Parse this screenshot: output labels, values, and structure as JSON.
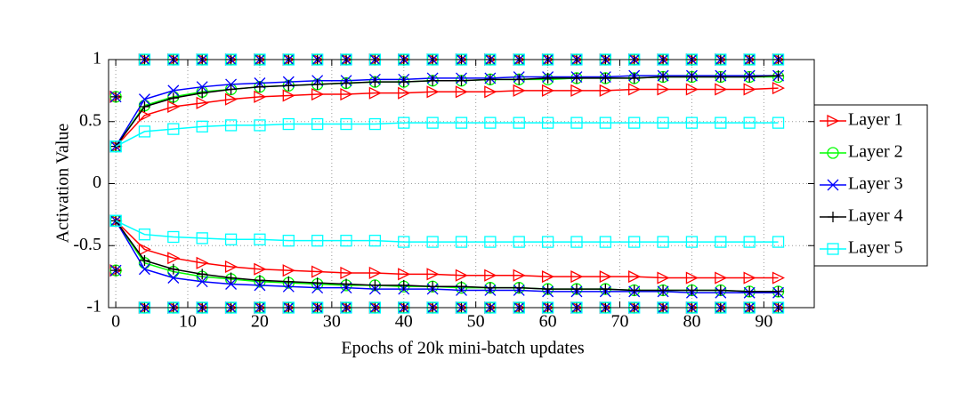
{
  "chart_data": {
    "type": "line",
    "xlabel": "Epochs of 20k mini-batch updates",
    "ylabel": "Activation Value",
    "x": [
      0,
      4,
      8,
      12,
      16,
      20,
      24,
      28,
      32,
      36,
      40,
      44,
      48,
      52,
      56,
      60,
      64,
      68,
      72,
      76,
      80,
      84,
      88,
      92
    ],
    "xlim": [
      -1,
      97
    ],
    "xticks": [
      0,
      10,
      20,
      30,
      40,
      50,
      60,
      70,
      80,
      90
    ],
    "ylim": [
      -1,
      1
    ],
    "yticks": [
      -1,
      -0.5,
      0,
      0.5,
      1
    ],
    "grid": true,
    "legend": "right",
    "series": [
      {
        "name": "Layer 1",
        "color": "#ff0000",
        "marker": "triangle-right",
        "values": [
          0.3,
          0.55,
          0.62,
          0.65,
          0.68,
          0.7,
          0.71,
          0.72,
          0.72,
          0.73,
          0.73,
          0.74,
          0.74,
          0.74,
          0.75,
          0.75,
          0.75,
          0.75,
          0.76,
          0.76,
          0.76,
          0.76,
          0.76,
          0.77
        ],
        "lower_values": [
          -0.3,
          -0.53,
          -0.6,
          -0.64,
          -0.67,
          -0.69,
          -0.7,
          -0.71,
          -0.72,
          -0.72,
          -0.73,
          -0.73,
          -0.74,
          -0.74,
          -0.74,
          -0.75,
          -0.75,
          -0.75,
          -0.75,
          -0.76,
          -0.76,
          -0.76,
          -0.76,
          -0.76
        ],
        "max_values": [
          0.7,
          1,
          1,
          1,
          1,
          1,
          1,
          1,
          1,
          1,
          1,
          1,
          1,
          1,
          1,
          1,
          1,
          1,
          1,
          1,
          1,
          1,
          1,
          1
        ],
        "min_values": [
          -0.7,
          -1,
          -1,
          -1,
          -1,
          -1,
          -1,
          -1,
          -1,
          -1,
          -1,
          -1,
          -1,
          -1,
          -1,
          -1,
          -1,
          -1,
          -1,
          -1,
          -1,
          -1,
          -1,
          -1
        ]
      },
      {
        "name": "Layer 2",
        "color": "#00ff00",
        "marker": "circle",
        "values": [
          0.3,
          0.63,
          0.7,
          0.74,
          0.76,
          0.78,
          0.79,
          0.8,
          0.81,
          0.82,
          0.82,
          0.83,
          0.83,
          0.84,
          0.84,
          0.84,
          0.85,
          0.85,
          0.85,
          0.86,
          0.86,
          0.86,
          0.86,
          0.86
        ],
        "lower_values": [
          -0.3,
          -0.64,
          -0.71,
          -0.75,
          -0.77,
          -0.79,
          -0.8,
          -0.81,
          -0.82,
          -0.82,
          -0.83,
          -0.83,
          -0.84,
          -0.84,
          -0.84,
          -0.85,
          -0.85,
          -0.85,
          -0.86,
          -0.86,
          -0.86,
          -0.86,
          -0.87,
          -0.87
        ],
        "max_values": [
          0.7,
          1,
          1,
          1,
          1,
          1,
          1,
          1,
          1,
          1,
          1,
          1,
          1,
          1,
          1,
          1,
          1,
          1,
          1,
          1,
          1,
          1,
          1,
          1
        ],
        "min_values": [
          -0.7,
          -1,
          -1,
          -1,
          -1,
          -1,
          -1,
          -1,
          -1,
          -1,
          -1,
          -1,
          -1,
          -1,
          -1,
          -1,
          -1,
          -1,
          -1,
          -1,
          -1,
          -1,
          -1,
          -1
        ]
      },
      {
        "name": "Layer 3",
        "color": "#0000ff",
        "marker": "x",
        "values": [
          0.3,
          0.68,
          0.75,
          0.78,
          0.8,
          0.81,
          0.82,
          0.83,
          0.83,
          0.84,
          0.84,
          0.85,
          0.85,
          0.85,
          0.86,
          0.86,
          0.86,
          0.86,
          0.87,
          0.87,
          0.87,
          0.87,
          0.87,
          0.87
        ],
        "lower_values": [
          -0.3,
          -0.69,
          -0.76,
          -0.79,
          -0.81,
          -0.82,
          -0.83,
          -0.84,
          -0.84,
          -0.85,
          -0.85,
          -0.85,
          -0.86,
          -0.86,
          -0.86,
          -0.87,
          -0.87,
          -0.87,
          -0.87,
          -0.87,
          -0.88,
          -0.88,
          -0.88,
          -0.88
        ],
        "max_values": [
          0.7,
          1,
          1,
          1,
          1,
          1,
          1,
          1,
          1,
          1,
          1,
          1,
          1,
          1,
          1,
          1,
          1,
          1,
          1,
          1,
          1,
          1,
          1,
          1
        ],
        "min_values": [
          -0.7,
          -1,
          -1,
          -1,
          -1,
          -1,
          -1,
          -1,
          -1,
          -1,
          -1,
          -1,
          -1,
          -1,
          -1,
          -1,
          -1,
          -1,
          -1,
          -1,
          -1,
          -1,
          -1,
          -1
        ]
      },
      {
        "name": "Layer 4",
        "color": "#000000",
        "marker": "plus",
        "values": [
          0.3,
          0.62,
          0.69,
          0.73,
          0.76,
          0.78,
          0.79,
          0.8,
          0.81,
          0.82,
          0.82,
          0.83,
          0.83,
          0.84,
          0.84,
          0.85,
          0.85,
          0.85,
          0.85,
          0.86,
          0.86,
          0.86,
          0.86,
          0.87
        ],
        "lower_values": [
          -0.3,
          -0.62,
          -0.69,
          -0.73,
          -0.76,
          -0.78,
          -0.79,
          -0.8,
          -0.81,
          -0.82,
          -0.82,
          -0.83,
          -0.83,
          -0.84,
          -0.84,
          -0.85,
          -0.85,
          -0.85,
          -0.86,
          -0.86,
          -0.86,
          -0.86,
          -0.87,
          -0.87
        ],
        "max_values": [
          0.7,
          1,
          1,
          1,
          1,
          1,
          1,
          1,
          1,
          1,
          1,
          1,
          1,
          1,
          1,
          1,
          1,
          1,
          1,
          1,
          1,
          1,
          1,
          1
        ],
        "min_values": [
          -0.7,
          -1,
          -1,
          -1,
          -1,
          -1,
          -1,
          -1,
          -1,
          -1,
          -1,
          -1,
          -1,
          -1,
          -1,
          -1,
          -1,
          -1,
          -1,
          -1,
          -1,
          -1,
          -1,
          -1
        ]
      },
      {
        "name": "Layer 5",
        "color": "#00ffff",
        "marker": "square",
        "values": [
          0.3,
          0.42,
          0.44,
          0.46,
          0.47,
          0.47,
          0.48,
          0.48,
          0.48,
          0.48,
          0.49,
          0.49,
          0.49,
          0.49,
          0.49,
          0.49,
          0.49,
          0.49,
          0.49,
          0.49,
          0.49,
          0.49,
          0.49,
          0.49
        ],
        "lower_values": [
          -0.3,
          -0.41,
          -0.43,
          -0.44,
          -0.45,
          -0.45,
          -0.46,
          -0.46,
          -0.46,
          -0.46,
          -0.47,
          -0.47,
          -0.47,
          -0.47,
          -0.47,
          -0.47,
          -0.47,
          -0.47,
          -0.47,
          -0.47,
          -0.47,
          -0.47,
          -0.47,
          -0.47
        ],
        "max_values": [
          0.3,
          1,
          1,
          1,
          1,
          1,
          1,
          1,
          1,
          1,
          1,
          1,
          1,
          1,
          1,
          1,
          1,
          1,
          1,
          1,
          1,
          1,
          1,
          1
        ],
        "min_values": [
          -0.3,
          -1,
          -1,
          -1,
          -1,
          -1,
          -1,
          -1,
          -1,
          -1,
          -1,
          -1,
          -1,
          -1,
          -1,
          -1,
          -1,
          -1,
          -1,
          -1,
          -1,
          -1,
          -1,
          -1
        ]
      }
    ]
  }
}
